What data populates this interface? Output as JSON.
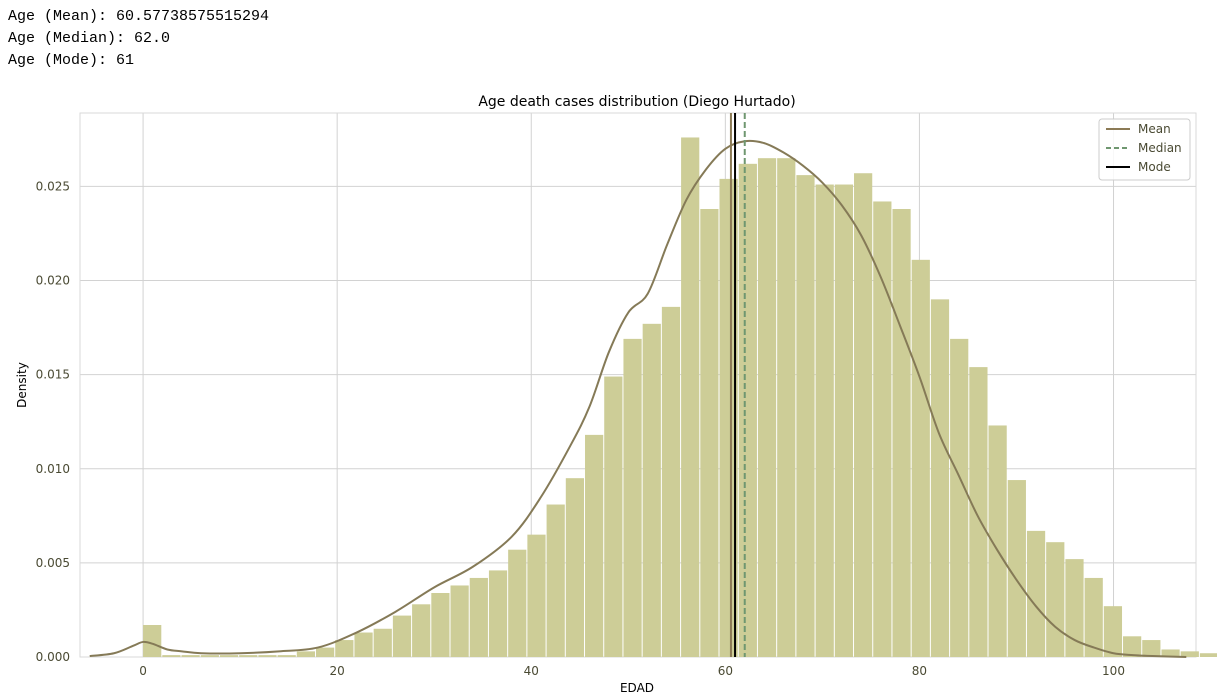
{
  "console": {
    "lines": [
      "Age (Mean): 60.57738575515294",
      "Age (Median): 62.0",
      "Age (Mode): 61"
    ]
  },
  "colors": {
    "bar": "#cdcd97",
    "kde": "#857a57",
    "mean": "#8b7a55",
    "median": "#6f9770",
    "mode": "#000000",
    "grid": "#d2d2d2",
    "text": "#4a4a33"
  },
  "chart_data": {
    "type": "bar",
    "title": "Age death cases distribution (Diego Hurtado)",
    "xlabel": "EDAD",
    "ylabel": "Density",
    "xlim": [
      -6.5,
      108.5
    ],
    "ylim": [
      0,
      0.0289
    ],
    "xticks": [
      0,
      20,
      40,
      60,
      80,
      100
    ],
    "xtick_labels": [
      "0",
      "20",
      "40",
      "60",
      "80",
      "100"
    ],
    "yticks": [
      0,
      0.005,
      0.01,
      0.015,
      0.02,
      0.025
    ],
    "ytick_labels": [
      "0.000",
      "0.005",
      "0.010",
      "0.015",
      "0.020",
      "0.025"
    ],
    "grid": true,
    "legend_position": "top-right",
    "histogram": {
      "bin_start": 0,
      "bin_width": 1.98,
      "densities": [
        0.0017,
        0.0001,
        0.0001,
        0.0001,
        0.0001,
        0.0001,
        0.0001,
        0.0001,
        0.0003,
        0.0005,
        0.0009,
        0.0013,
        0.0015,
        0.0022,
        0.0028,
        0.0034,
        0.0038,
        0.0042,
        0.0046,
        0.0057,
        0.0065,
        0.0081,
        0.0095,
        0.0118,
        0.0149,
        0.0169,
        0.0177,
        0.0186,
        0.0276,
        0.0238,
        0.0254,
        0.0262,
        0.0265,
        0.0265,
        0.0256,
        0.0251,
        0.0251,
        0.0257,
        0.0242,
        0.0238,
        0.0211,
        0.019,
        0.0169,
        0.0154,
        0.0123,
        0.0094,
        0.0067,
        0.0061,
        0.0052,
        0.0042,
        0.0027,
        0.0011,
        0.0009,
        0.0004,
        0.0003,
        0.0002,
        0.0001,
        0.0001
      ]
    },
    "kde": {
      "x": [
        -5.5,
        -3,
        -1,
        0,
        1,
        2.5,
        4,
        6,
        10,
        14,
        18,
        22,
        26,
        30,
        34,
        38,
        41,
        44,
        46,
        48,
        50,
        52,
        54,
        56,
        58,
        60,
        62,
        64,
        66,
        68,
        70,
        72,
        74,
        76,
        78,
        80,
        82,
        84,
        86,
        88,
        90,
        92,
        94,
        96,
        98,
        100,
        102,
        104,
        107.5
      ],
      "y": [
        5e-05,
        0.0002,
        0.0006,
        0.0008,
        0.0007,
        0.0004,
        0.0003,
        0.0002,
        0.0002,
        0.0003,
        0.0005,
        0.0013,
        0.0024,
        0.0037,
        0.0048,
        0.0064,
        0.0085,
        0.0112,
        0.0133,
        0.0162,
        0.0183,
        0.0193,
        0.0219,
        0.0243,
        0.0259,
        0.027,
        0.0274,
        0.0273,
        0.0268,
        0.0261,
        0.0252,
        0.024,
        0.0224,
        0.0202,
        0.0176,
        0.0149,
        0.0119,
        0.0097,
        0.0075,
        0.0057,
        0.0041,
        0.0027,
        0.0016,
        0.0009,
        0.0005,
        0.0002,
        0.0001,
        5e-05,
        0.0
      ]
    },
    "series": [
      {
        "name": "Mean",
        "value": 60.57738575515294,
        "style": "solid"
      },
      {
        "name": "Median",
        "value": 62.0,
        "style": "dashed"
      },
      {
        "name": "Mode",
        "value": 61,
        "style": "solid"
      }
    ]
  }
}
